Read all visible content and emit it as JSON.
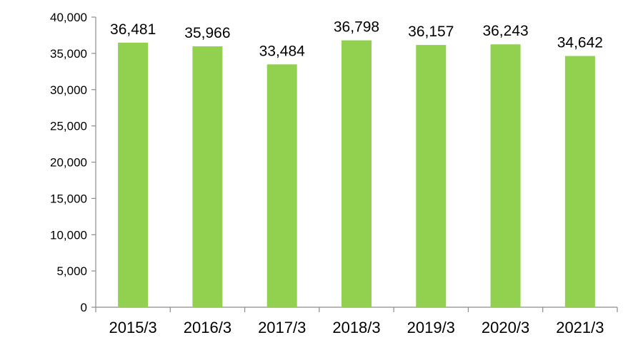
{
  "chart_data": {
    "type": "bar",
    "title": "",
    "xlabel": "",
    "ylabel": "",
    "categories": [
      "2015/3",
      "2016/3",
      "2017/3",
      "2018/3",
      "2019/3",
      "2020/3",
      "2021/3"
    ],
    "values": [
      36481,
      35966,
      33484,
      36798,
      36157,
      36243,
      34642
    ],
    "data_labels": [
      "36,481",
      "35,966",
      "33,484",
      "36,798",
      "36,157",
      "36,243",
      "34,642"
    ],
    "ylim": [
      0,
      40000
    ],
    "yticks": [
      0,
      5000,
      10000,
      15000,
      20000,
      25000,
      30000,
      35000,
      40000
    ],
    "ytick_labels": [
      "0",
      "5,000",
      "10,000",
      "15,000",
      "20,000",
      "25,000",
      "30,000",
      "35,000",
      "40,000"
    ],
    "bar_color": "#92d050",
    "grid": false,
    "legend": "none"
  }
}
